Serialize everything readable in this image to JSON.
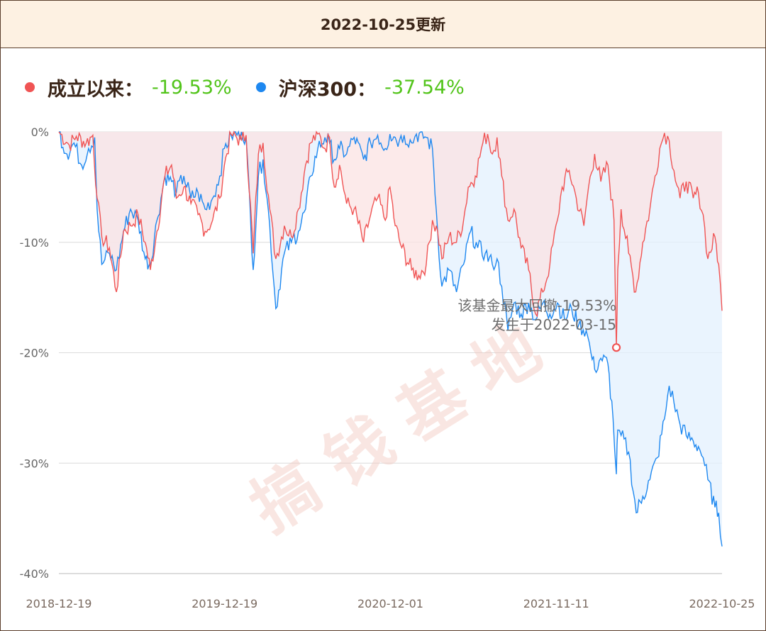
{
  "header": {
    "title": "2022-10-25更新"
  },
  "legend": [
    {
      "name": "成立以来：",
      "value": "-19.53%",
      "color": "#f05454"
    },
    {
      "name": "沪深300：",
      "value": "-37.54%",
      "color": "#1e88f0"
    }
  ],
  "watermark": "搞钱基地",
  "colors": {
    "fund": "#f05454",
    "index": "#1e88f0",
    "fund_fill": "#fbe3e3",
    "index_fill": "#e3f0fd",
    "value_green": "#52c41a"
  },
  "chart_data": {
    "type": "line",
    "title": "",
    "xlabel": "",
    "ylabel": "",
    "ylim": [
      -40,
      0
    ],
    "y_ticks": [
      "0%",
      "-10%",
      "-20%",
      "-30%",
      "-40%"
    ],
    "x_tick_labels": [
      "2018-12-19",
      "2019-12-19",
      "2020-12-01",
      "2021-11-11",
      "2022-10-25"
    ],
    "x_range": [
      "2018-12-19",
      "2022-10-25"
    ],
    "grid": true,
    "annotation": {
      "line1": "该基金最大回撤-19.53%",
      "line2": "发生于2022-03-15",
      "point": {
        "x": "2022-03-15",
        "y": -19.53
      }
    },
    "series": [
      {
        "name": "成立以来",
        "color": "#f05454",
        "points": [
          [
            "2018-12-19",
            0
          ],
          [
            "2019-01-10",
            -1.2
          ],
          [
            "2019-01-25",
            -0.4
          ],
          [
            "2019-02-15",
            -1.0
          ],
          [
            "2019-03-01",
            -0.3
          ],
          [
            "2019-03-10",
            -6.0
          ],
          [
            "2019-03-20",
            -9.5
          ],
          [
            "2019-04-05",
            -10.5
          ],
          [
            "2019-04-20",
            -14.5
          ],
          [
            "2019-05-05",
            -9.0
          ],
          [
            "2019-05-20",
            -8.5
          ],
          [
            "2019-06-05",
            -7.5
          ],
          [
            "2019-06-20",
            -10.0
          ],
          [
            "2019-07-01",
            -12.5
          ],
          [
            "2019-07-15",
            -9.0
          ],
          [
            "2019-08-01",
            -4.0
          ],
          [
            "2019-08-15",
            -3.0
          ],
          [
            "2019-08-25",
            -6.0
          ],
          [
            "2019-09-10",
            -5.0
          ],
          [
            "2019-09-25",
            -6.5
          ],
          [
            "2019-10-10",
            -7.5
          ],
          [
            "2019-10-25",
            -9.0
          ],
          [
            "2019-11-10",
            -8.0
          ],
          [
            "2019-11-25",
            -6.0
          ],
          [
            "2019-12-05",
            -3.0
          ],
          [
            "2019-12-19",
            -0.2
          ],
          [
            "2020-01-10",
            -0.8
          ],
          [
            "2020-01-20",
            -0.3
          ],
          [
            "2020-02-04",
            -11.0
          ],
          [
            "2020-02-15",
            -2.0
          ],
          [
            "2020-02-25",
            -1.0
          ],
          [
            "2020-03-10",
            -7.0
          ],
          [
            "2020-03-23",
            -11.5
          ],
          [
            "2020-04-10",
            -8.5
          ],
          [
            "2020-04-25",
            -9.5
          ],
          [
            "2020-05-10",
            -7.0
          ],
          [
            "2020-05-25",
            -3.0
          ],
          [
            "2020-06-05",
            -1.0
          ],
          [
            "2020-06-20",
            -0.2
          ],
          [
            "2020-07-05",
            -1.5
          ],
          [
            "2020-07-15",
            -0.5
          ],
          [
            "2020-07-25",
            -5.0
          ],
          [
            "2020-08-05",
            -3.0
          ],
          [
            "2020-08-20",
            -6.5
          ],
          [
            "2020-09-05",
            -7.0
          ],
          [
            "2020-09-25",
            -10.0
          ],
          [
            "2020-10-10",
            -7.5
          ],
          [
            "2020-10-25",
            -6.0
          ],
          [
            "2020-11-10",
            -8.0
          ],
          [
            "2020-11-20",
            -5.0
          ],
          [
            "2020-12-01",
            -8.5
          ],
          [
            "2020-12-15",
            -10.5
          ],
          [
            "2021-01-05",
            -12.5
          ],
          [
            "2021-01-20",
            -13.0
          ],
          [
            "2021-02-05",
            -12.0
          ],
          [
            "2021-02-18",
            -8.0
          ],
          [
            "2021-03-01",
            -9.0
          ],
          [
            "2021-03-10",
            -11.5
          ],
          [
            "2021-03-25",
            -9.5
          ],
          [
            "2021-04-10",
            -10.0
          ],
          [
            "2021-04-25",
            -8.0
          ],
          [
            "2021-05-05",
            -5.0
          ],
          [
            "2021-05-20",
            -4.0
          ],
          [
            "2021-06-05",
            -1.0
          ],
          [
            "2021-06-15",
            -0.2
          ],
          [
            "2021-06-25",
            -2.0
          ],
          [
            "2021-07-05",
            -0.5
          ],
          [
            "2021-07-15",
            -4.0
          ],
          [
            "2021-07-28",
            -8.0
          ],
          [
            "2021-08-10",
            -7.0
          ],
          [
            "2021-08-25",
            -10.5
          ],
          [
            "2021-09-10",
            -12.5
          ],
          [
            "2021-09-25",
            -16.5
          ],
          [
            "2021-10-10",
            -14.5
          ],
          [
            "2021-10-25",
            -12.0
          ],
          [
            "2021-11-10",
            -8.0
          ],
          [
            "2021-11-20",
            -5.0
          ],
          [
            "2021-12-05",
            -3.5
          ],
          [
            "2021-12-20",
            -6.0
          ],
          [
            "2022-01-05",
            -8.5
          ],
          [
            "2022-01-15",
            -5.0
          ],
          [
            "2022-01-28",
            -2.0
          ],
          [
            "2022-02-10",
            -4.5
          ],
          [
            "2022-02-25",
            -3.0
          ],
          [
            "2022-03-10",
            -8.0
          ],
          [
            "2022-03-15",
            -19.53
          ],
          [
            "2022-03-18",
            -12.5
          ],
          [
            "2022-03-25",
            -7.0
          ],
          [
            "2022-04-10",
            -11.0
          ],
          [
            "2022-04-25",
            -14.5
          ],
          [
            "2022-05-10",
            -10.0
          ],
          [
            "2022-05-25",
            -7.0
          ],
          [
            "2022-06-05",
            -4.0
          ],
          [
            "2022-06-15",
            -1.5
          ],
          [
            "2022-06-25",
            -0.1
          ],
          [
            "2022-07-05",
            -0.8
          ],
          [
            "2022-07-15",
            -3.5
          ],
          [
            "2022-07-28",
            -6.0
          ],
          [
            "2022-08-10",
            -4.5
          ],
          [
            "2022-08-25",
            -6.0
          ],
          [
            "2022-09-05",
            -5.5
          ],
          [
            "2022-09-15",
            -7.5
          ],
          [
            "2022-09-25",
            -11.5
          ],
          [
            "2022-10-10",
            -9.5
          ],
          [
            "2022-10-18",
            -12.0
          ],
          [
            "2022-10-25",
            -16.2
          ]
        ]
      },
      {
        "name": "沪深300",
        "color": "#1e88f0",
        "points": [
          [
            "2018-12-19",
            0
          ],
          [
            "2019-01-05",
            -2.0
          ],
          [
            "2019-01-20",
            -1.0
          ],
          [
            "2019-02-05",
            -3.0
          ],
          [
            "2019-02-20",
            -1.5
          ],
          [
            "2019-03-05",
            -0.5
          ],
          [
            "2019-03-10",
            -7.0
          ],
          [
            "2019-03-20",
            -12.0
          ],
          [
            "2019-04-05",
            -11.0
          ],
          [
            "2019-04-20",
            -12.5
          ],
          [
            "2019-05-05",
            -9.0
          ],
          [
            "2019-05-20",
            -7.0
          ],
          [
            "2019-06-05",
            -8.0
          ],
          [
            "2019-06-20",
            -11.5
          ],
          [
            "2019-07-01",
            -12.0
          ],
          [
            "2019-07-15",
            -8.0
          ],
          [
            "2019-08-01",
            -4.0
          ],
          [
            "2019-08-15",
            -4.5
          ],
          [
            "2019-08-25",
            -5.5
          ],
          [
            "2019-09-10",
            -4.0
          ],
          [
            "2019-09-25",
            -6.0
          ],
          [
            "2019-10-10",
            -5.5
          ],
          [
            "2019-10-25",
            -7.0
          ],
          [
            "2019-11-10",
            -6.0
          ],
          [
            "2019-11-25",
            -4.0
          ],
          [
            "2019-12-05",
            -1.5
          ],
          [
            "2019-12-19",
            -0.3
          ],
          [
            "2020-01-10",
            0
          ],
          [
            "2020-01-20",
            -0.5
          ],
          [
            "2020-02-04",
            -12.5
          ],
          [
            "2020-02-15",
            -4.0
          ],
          [
            "2020-02-25",
            -2.5
          ],
          [
            "2020-03-10",
            -8.5
          ],
          [
            "2020-03-23",
            -16.0
          ],
          [
            "2020-04-10",
            -11.0
          ],
          [
            "2020-04-25",
            -10.0
          ],
          [
            "2020-05-10",
            -9.0
          ],
          [
            "2020-05-25",
            -7.0
          ],
          [
            "2020-06-05",
            -4.0
          ],
          [
            "2020-06-20",
            -1.5
          ],
          [
            "2020-07-05",
            -0.5
          ],
          [
            "2020-07-15",
            -1.0
          ],
          [
            "2020-07-25",
            -2.5
          ],
          [
            "2020-08-05",
            -1.5
          ],
          [
            "2020-08-20",
            -2.0
          ],
          [
            "2020-09-05",
            -0.5
          ],
          [
            "2020-09-25",
            -2.5
          ],
          [
            "2020-10-10",
            -1.0
          ],
          [
            "2020-10-25",
            -0.3
          ],
          [
            "2020-11-10",
            -1.5
          ],
          [
            "2020-11-20",
            -0.2
          ],
          [
            "2020-12-01",
            -0.5
          ],
          [
            "2020-12-10",
            -0.8
          ],
          [
            "2020-12-20",
            -0.3
          ],
          [
            "2021-01-05",
            -1.0
          ],
          [
            "2021-01-15",
            -0.2
          ],
          [
            "2021-02-05",
            -0.5
          ],
          [
            "2021-02-18",
            -1.5
          ],
          [
            "2021-03-01",
            -9.0
          ],
          [
            "2021-03-10",
            -14.0
          ],
          [
            "2021-03-25",
            -12.5
          ],
          [
            "2021-04-10",
            -14.5
          ],
          [
            "2021-04-25",
            -12.0
          ],
          [
            "2021-05-10",
            -9.0
          ],
          [
            "2021-05-25",
            -10.5
          ],
          [
            "2021-06-10",
            -11.0
          ],
          [
            "2021-06-25",
            -12.0
          ],
          [
            "2021-07-05",
            -11.5
          ],
          [
            "2021-07-15",
            -14.0
          ],
          [
            "2021-07-28",
            -18.0
          ],
          [
            "2021-08-10",
            -15.5
          ],
          [
            "2021-08-25",
            -16.5
          ],
          [
            "2021-09-10",
            -15.5
          ],
          [
            "2021-09-25",
            -17.0
          ],
          [
            "2021-10-10",
            -15.5
          ],
          [
            "2021-10-25",
            -16.5
          ],
          [
            "2021-11-10",
            -15.5
          ],
          [
            "2021-11-25",
            -17.0
          ],
          [
            "2021-12-10",
            -16.0
          ],
          [
            "2021-12-25",
            -17.5
          ],
          [
            "2022-01-10",
            -18.0
          ],
          [
            "2022-01-20",
            -20.0
          ],
          [
            "2022-01-28",
            -21.5
          ],
          [
            "2022-02-10",
            -20.5
          ],
          [
            "2022-02-25",
            -21.0
          ],
          [
            "2022-03-08",
            -26.0
          ],
          [
            "2022-03-15",
            -31.0
          ],
          [
            "2022-03-18",
            -27.0
          ],
          [
            "2022-03-25",
            -27.5
          ],
          [
            "2022-04-10",
            -29.0
          ],
          [
            "2022-04-26",
            -34.5
          ],
          [
            "2022-05-10",
            -33.0
          ],
          [
            "2022-05-25",
            -31.5
          ],
          [
            "2022-06-10",
            -29.5
          ],
          [
            "2022-06-25",
            -26.0
          ],
          [
            "2022-07-05",
            -23.0
          ],
          [
            "2022-07-15",
            -24.5
          ],
          [
            "2022-07-28",
            -26.5
          ],
          [
            "2022-08-10",
            -27.5
          ],
          [
            "2022-08-25",
            -28.0
          ],
          [
            "2022-09-05",
            -28.5
          ],
          [
            "2022-09-15",
            -29.5
          ],
          [
            "2022-09-25",
            -31.5
          ],
          [
            "2022-10-10",
            -34.0
          ],
          [
            "2022-10-18",
            -34.5
          ],
          [
            "2022-10-25",
            -37.54
          ]
        ]
      }
    ]
  }
}
